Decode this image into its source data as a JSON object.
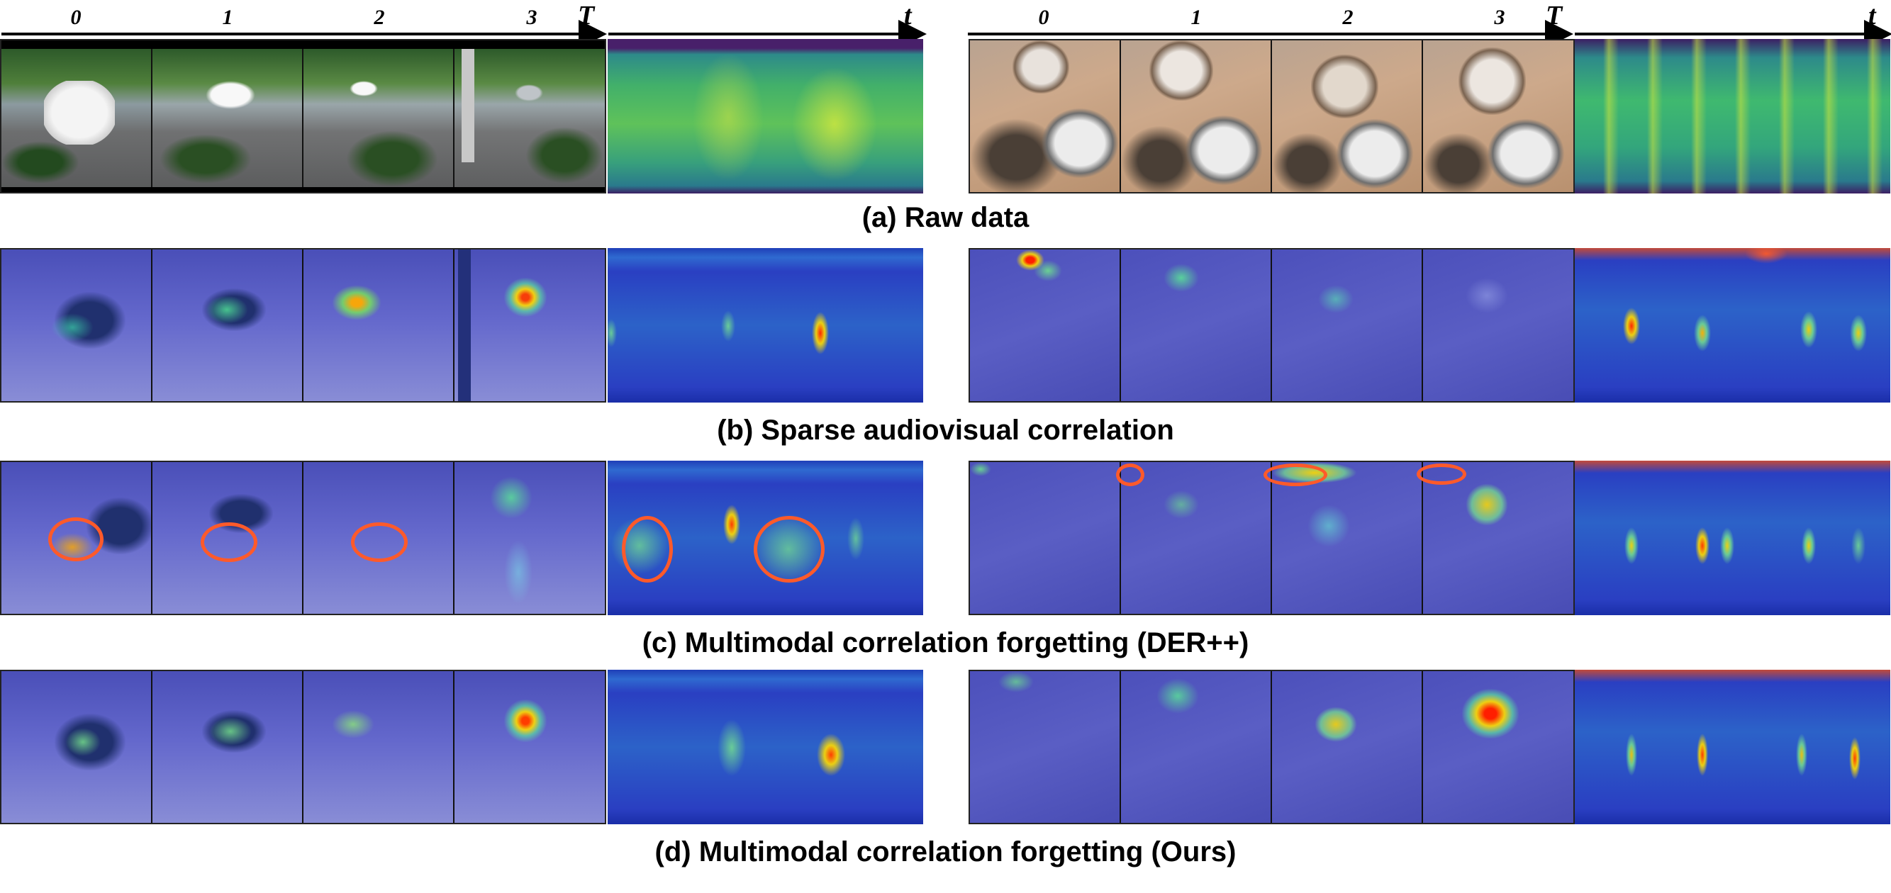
{
  "figure": {
    "timeline": {
      "ticks": [
        "0",
        "1",
        "2",
        "3"
      ],
      "video_end_label": "T",
      "audio_end_label": "t"
    },
    "captions": {
      "a": "(a) Raw data",
      "b": "(b) Sparse audiovisual correlation",
      "c": "(c) Multimodal correlation forgetting (DER++)",
      "d": "(d) Multimodal correlation forgetting (Ours)"
    }
  },
  "colors": {
    "heat_low": "#3a3fc4",
    "heat_high": "#ff2a00",
    "viridis_mid": "#3fb96f",
    "highlight_ellipse": "#ff5a2a"
  }
}
